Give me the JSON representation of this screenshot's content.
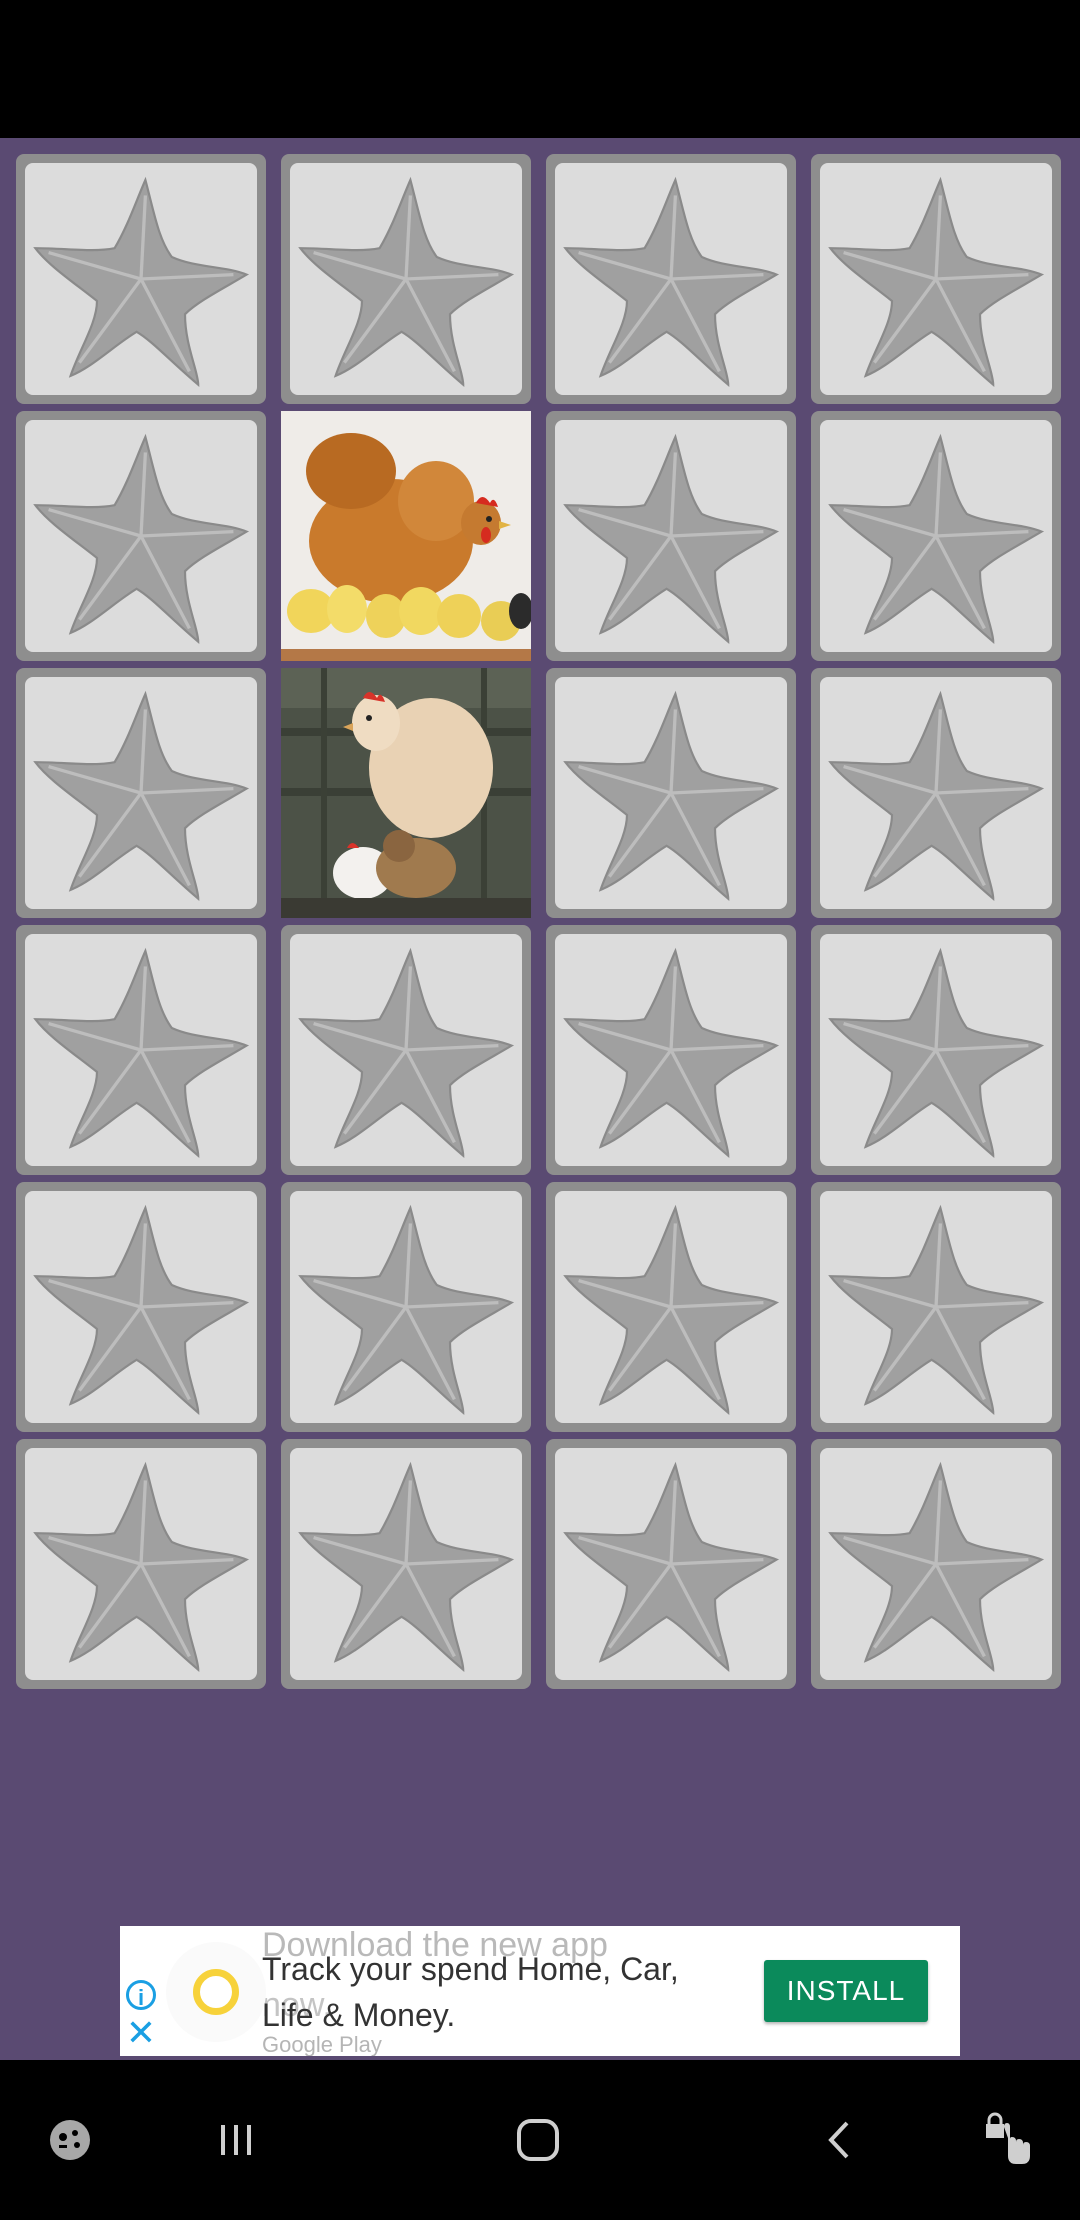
{
  "ad": {
    "ghost_line": "Download the new app",
    "ghost_line2": "now.",
    "headline": "Track your spend Home, Car, Life & Money.",
    "store": "Google Play",
    "install_label": "INSTALL",
    "info_icon": "info-icon",
    "close_icon": "close-icon"
  },
  "board": {
    "columns": 4,
    "rows": 6,
    "revealed": [
      {
        "row": 2,
        "col": 2,
        "image": "hen-with-chicks"
      },
      {
        "row": 3,
        "col": 2,
        "image": "hen-on-fence"
      }
    ],
    "card_back_icon": "starfish-icon",
    "colors": {
      "background": "#5a4a72",
      "card_frame": "#8e8e8e",
      "card_face": "#dcdcdc"
    }
  },
  "nav": {
    "items": [
      "game-launcher-icon",
      "recent-apps-icon",
      "home-icon",
      "back-icon",
      "touch-lock-icon"
    ]
  }
}
